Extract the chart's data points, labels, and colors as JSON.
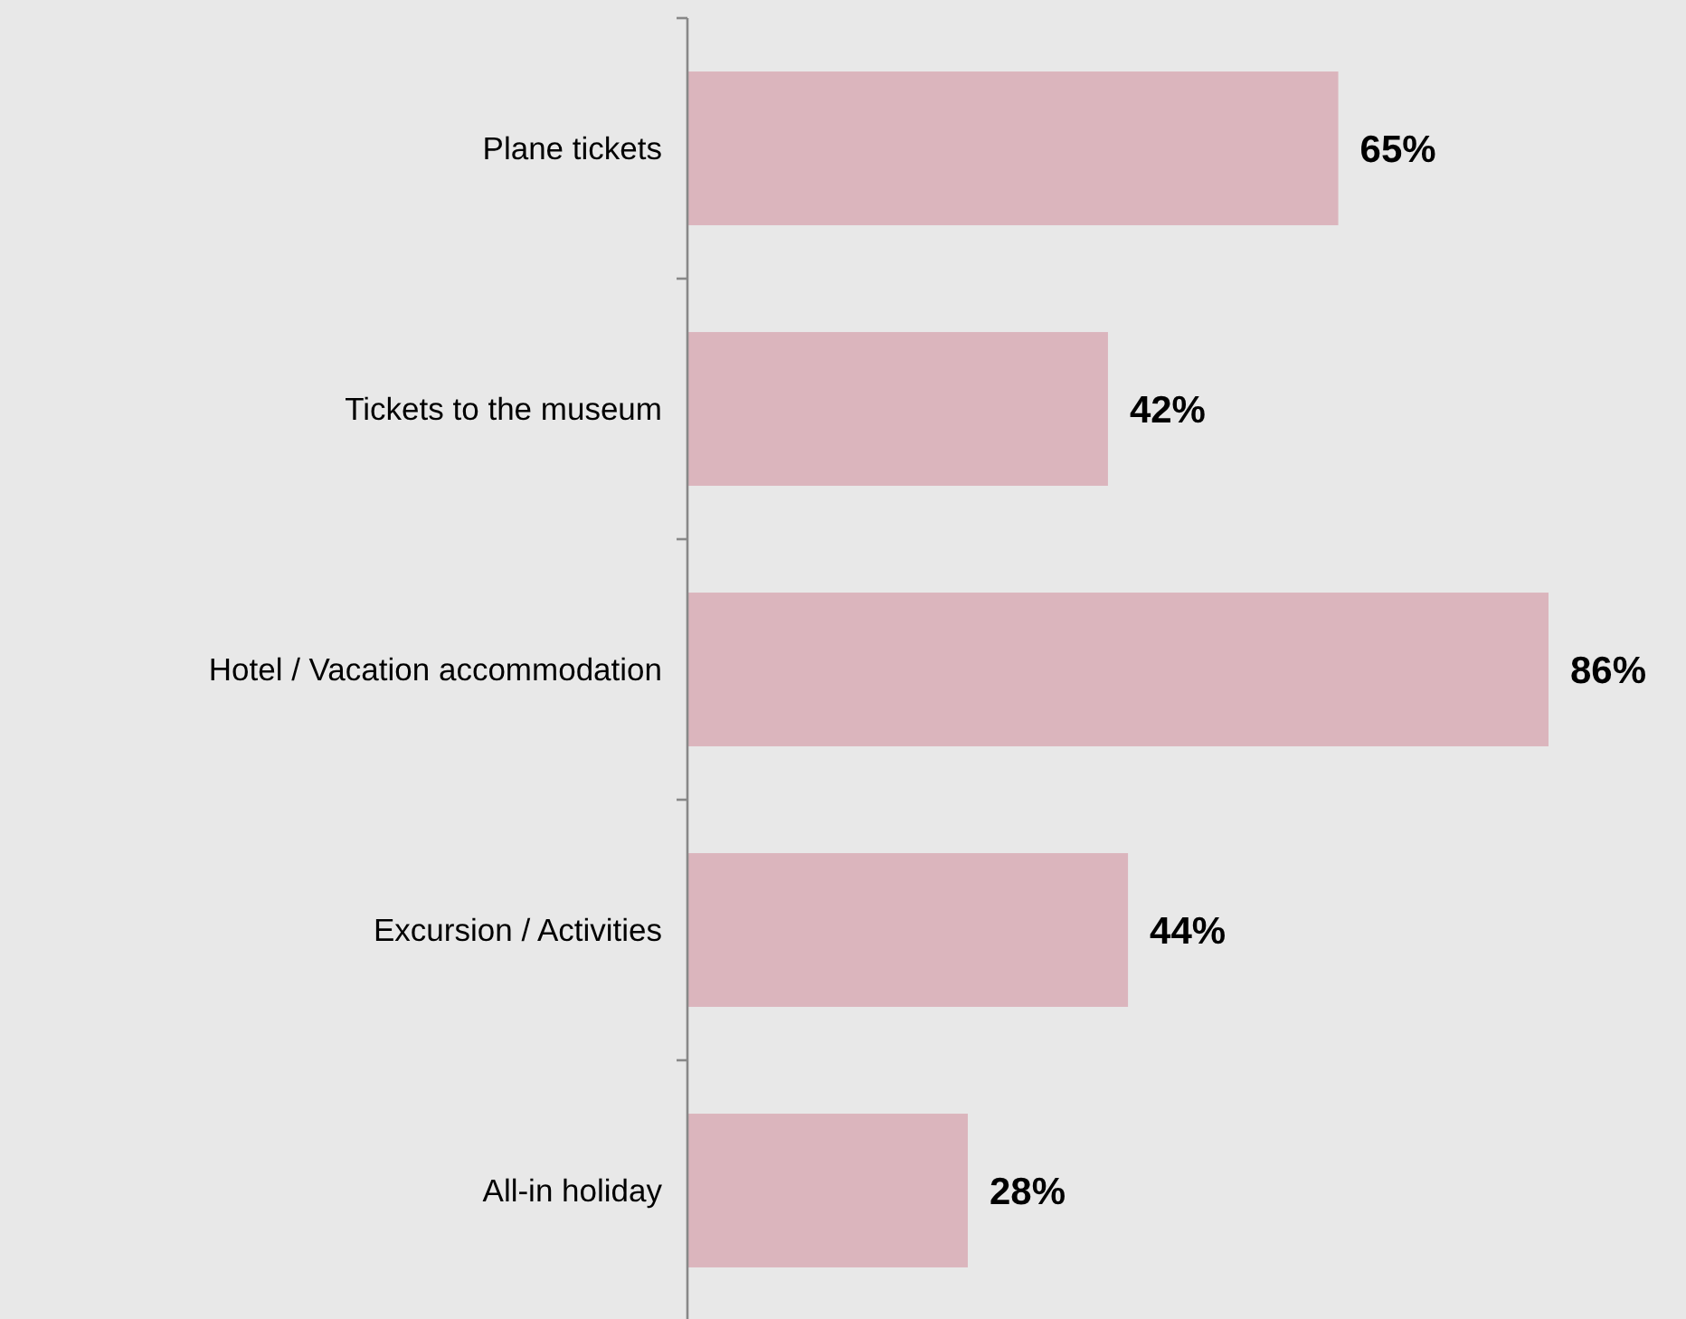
{
  "chart_data": {
    "type": "bar",
    "orientation": "horizontal",
    "categories": [
      "Plane tickets",
      "Tickets to the museum",
      "Hotel / Vacation accommodation",
      "Excursion / Activities",
      "All-in holiday"
    ],
    "values": [
      65,
      42,
      86,
      44,
      28
    ],
    "value_labels": [
      "65%",
      "42%",
      "86%",
      "44%",
      "28%"
    ],
    "color": "#dbb5bd"
  }
}
